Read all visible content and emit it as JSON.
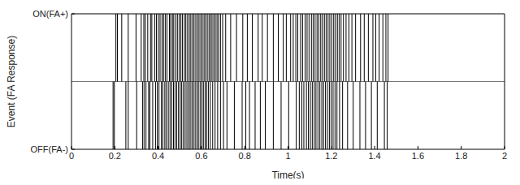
{
  "chart_data": {
    "type": "event",
    "xlabel": "Time(s)",
    "ylabel": "Event (FA Response)",
    "xlim": [
      0,
      2
    ],
    "xticks": [
      0,
      0.2,
      0.4,
      0.6,
      0.8,
      1,
      1.2,
      1.4,
      1.6,
      1.8,
      2
    ],
    "ylim": [
      -1,
      1
    ],
    "yticks": [
      {
        "value": -1,
        "label": "OFF(FA-)"
      },
      {
        "value": 1,
        "label": "ON(FA+)"
      }
    ],
    "color": "#000000",
    "events": {
      "on": [
        0.205,
        0.212,
        0.232,
        0.262,
        0.298,
        0.322,
        0.334,
        0.341,
        0.352,
        0.365,
        0.371,
        0.384,
        0.392,
        0.401,
        0.409,
        0.418,
        0.425,
        0.433,
        0.441,
        0.452,
        0.458,
        0.466,
        0.472,
        0.481,
        0.489,
        0.497,
        0.505,
        0.512,
        0.521,
        0.528,
        0.536,
        0.544,
        0.551,
        0.559,
        0.566,
        0.574,
        0.582,
        0.589,
        0.597,
        0.604,
        0.612,
        0.619,
        0.627,
        0.635,
        0.642,
        0.649,
        0.657,
        0.664,
        0.672,
        0.679,
        0.688,
        0.698,
        0.712,
        0.735,
        0.762,
        0.791,
        0.812,
        0.835,
        0.862,
        0.881,
        0.905,
        0.932,
        0.955,
        0.978,
        0.992,
        1.012,
        1.024,
        1.036,
        1.045,
        1.058,
        1.067,
        1.079,
        1.088,
        1.097,
        1.108,
        1.116,
        1.125,
        1.134,
        1.142,
        1.151,
        1.159,
        1.168,
        1.176,
        1.185,
        1.193,
        1.202,
        1.211,
        1.219,
        1.228,
        1.236,
        1.245,
        1.256,
        1.268,
        1.281,
        1.295,
        1.312,
        1.335,
        1.352,
        1.371,
        1.392,
        1.405,
        1.421,
        1.438,
        1.452,
        1.462
      ],
      "off": [
        0.192,
        0.198,
        0.251,
        0.262,
        0.301,
        0.328,
        0.335,
        0.344,
        0.356,
        0.362,
        0.375,
        0.388,
        0.396,
        0.404,
        0.415,
        0.422,
        0.431,
        0.438,
        0.447,
        0.455,
        0.463,
        0.471,
        0.478,
        0.486,
        0.494,
        0.502,
        0.509,
        0.517,
        0.525,
        0.533,
        0.541,
        0.548,
        0.556,
        0.563,
        0.571,
        0.579,
        0.586,
        0.594,
        0.602,
        0.609,
        0.617,
        0.624,
        0.632,
        0.641,
        0.652,
        0.663,
        0.675,
        0.688,
        0.702,
        0.718,
        0.752,
        0.788,
        0.805,
        0.822,
        0.848,
        0.872,
        0.895,
        0.932,
        0.968,
        1.003,
        1.038,
        1.052,
        1.064,
        1.073,
        1.085,
        1.094,
        1.103,
        1.112,
        1.121,
        1.129,
        1.138,
        1.147,
        1.156,
        1.164,
        1.173,
        1.182,
        1.191,
        1.199,
        1.208,
        1.217,
        1.226,
        1.238,
        1.252,
        1.275,
        1.301,
        1.332,
        1.358,
        1.385,
        1.412,
        1.445,
        1.458
      ]
    }
  }
}
